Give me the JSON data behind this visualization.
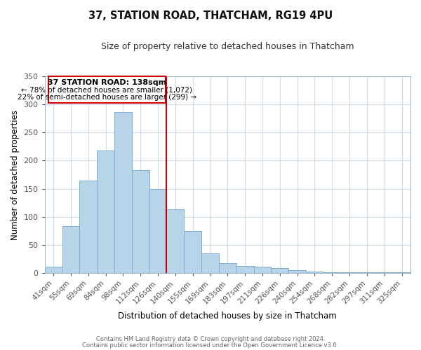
{
  "title": "37, STATION ROAD, THATCHAM, RG19 4PU",
  "subtitle": "Size of property relative to detached houses in Thatcham",
  "xlabel": "Distribution of detached houses by size in Thatcham",
  "ylabel": "Number of detached properties",
  "bar_labels": [
    "41sqm",
    "55sqm",
    "69sqm",
    "84sqm",
    "98sqm",
    "112sqm",
    "126sqm",
    "140sqm",
    "155sqm",
    "169sqm",
    "183sqm",
    "197sqm",
    "211sqm",
    "226sqm",
    "240sqm",
    "254sqm",
    "268sqm",
    "282sqm",
    "297sqm",
    "311sqm",
    "325sqm"
  ],
  "bar_heights": [
    12,
    84,
    165,
    218,
    287,
    183,
    150,
    114,
    75,
    35,
    18,
    13,
    12,
    9,
    5,
    3,
    1,
    1,
    1,
    1,
    1
  ],
  "bar_color": "#b8d4e8",
  "bar_edge_color": "#7baed4",
  "vline_color": "#cc0000",
  "annotation_title": "37 STATION ROAD: 138sqm",
  "annotation_line1": "← 78% of detached houses are smaller (1,072)",
  "annotation_line2": "22% of semi-detached houses are larger (299) →",
  "annotation_box_color": "#ffffff",
  "annotation_box_edge": "#cc0000",
  "ylim": [
    0,
    350
  ],
  "yticks": [
    0,
    50,
    100,
    150,
    200,
    250,
    300,
    350
  ],
  "footer1": "Contains HM Land Registry data © Crown copyright and database right 2024.",
  "footer2": "Contains public sector information licensed under the Open Government Licence v3.0.",
  "background_color": "#ffffff",
  "grid_color": "#d0dce8"
}
